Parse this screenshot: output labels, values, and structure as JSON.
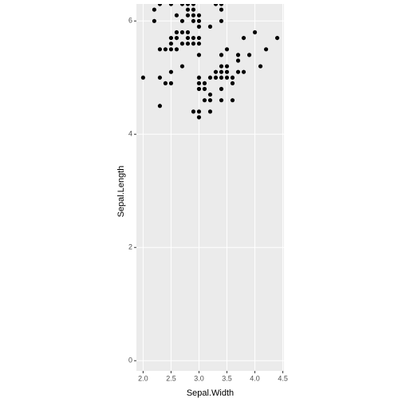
{
  "chart_data": {
    "type": "scatter",
    "x_label": "Sepal.Width",
    "y_label": "Sepal.Length",
    "color": "#000000",
    "grid": true,
    "xlim": [
      1.88,
      4.52
    ],
    "ylim": [
      -0.18,
      6.3
    ],
    "xticks": [
      {
        "value": 2,
        "label": "2.0"
      },
      2.5,
      {
        "value": 3,
        "label": "3.0"
      },
      3.5,
      {
        "value": 4,
        "label": "4.0"
      },
      4.5
    ],
    "yticks": [
      0,
      2,
      4,
      6
    ],
    "x": [
      3.5,
      3.0,
      3.2,
      3.1,
      3.6,
      3.9,
      3.4,
      3.4,
      2.9,
      3.1,
      3.7,
      3.4,
      3.0,
      3.0,
      4.0,
      4.4,
      3.8,
      3.8,
      3.4,
      3.7,
      3.6,
      3.3,
      3.0,
      3.5,
      3.4,
      3.1,
      4.1,
      4.2,
      3.2,
      3.5,
      3.6,
      3.0,
      3.4,
      3.5,
      2.3,
      3.2,
      3.2,
      3.7,
      3.3,
      2.3,
      2.8,
      3.3,
      2.4,
      2.7,
      2.0,
      3.0,
      2.2,
      2.9,
      2.9,
      3.0,
      2.7,
      2.2,
      2.5,
      3.2,
      2.8,
      2.5,
      2.9,
      2.6,
      2.4,
      2.7,
      3.0,
      3.4,
      2.3,
      2.5,
      2.6,
      3.0,
      2.6,
      2.3,
      2.7,
      3.0,
      2.9,
      2.9,
      2.5,
      2.9,
      2.5,
      2.5,
      2.8,
      2.8,
      2.7,
      2.8,
      2.8,
      2.6,
      3.4,
      3.0,
      3.4
    ],
    "y": [
      5.1,
      4.9,
      4.7,
      4.6,
      5.0,
      5.4,
      4.6,
      5.0,
      4.4,
      4.9,
      5.4,
      4.8,
      4.8,
      4.3,
      5.8,
      5.7,
      5.7,
      5.1,
      5.4,
      5.1,
      4.6,
      5.1,
      5.0,
      5.2,
      5.2,
      4.8,
      5.2,
      5.5,
      5.0,
      5.5,
      4.9,
      4.4,
      5.1,
      5.0,
      4.5,
      4.4,
      4.6,
      5.3,
      5.0,
      5.5,
      5.7,
      6.3,
      4.9,
      5.2,
      5.0,
      5.9,
      6.0,
      6.1,
      5.6,
      5.6,
      5.8,
      6.2,
      5.6,
      5.9,
      6.1,
      6.3,
      6.0,
      5.7,
      5.5,
      6.0,
      5.4,
      6.0,
      6.3,
      5.5,
      5.5,
      6.1,
      5.8,
      5.0,
      5.6,
      5.7,
      5.7,
      6.2,
      5.1,
      6.3,
      4.9,
      5.7,
      5.8,
      5.6,
      6.3,
      6.2,
      6.3,
      6.1,
      6.3,
      6.0,
      6.2
    ]
  }
}
